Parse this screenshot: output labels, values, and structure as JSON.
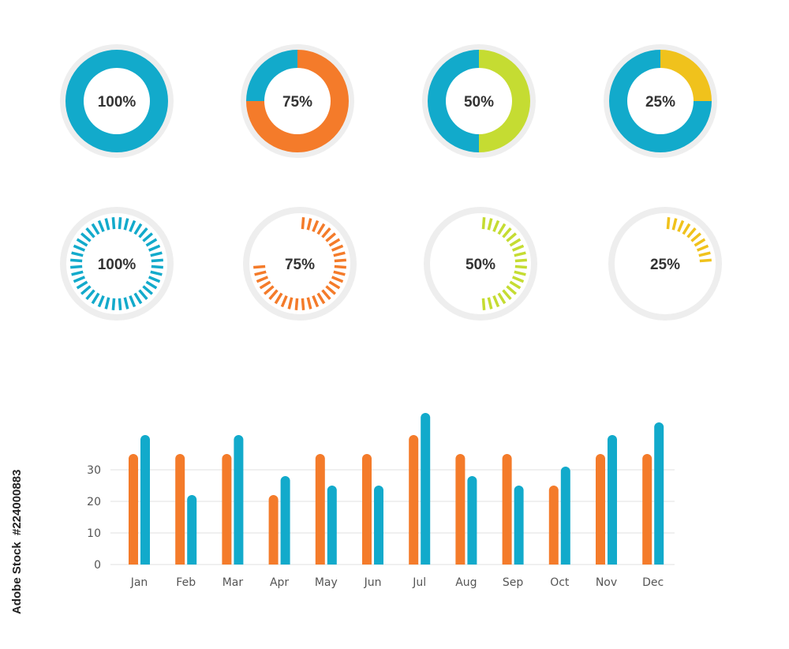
{
  "colors": {
    "blue": "#12aacb",
    "orange": "#f47b2a",
    "green": "#c5dc32",
    "yellow": "#f0c21c",
    "ring": "#eeeeee",
    "grid": "#e2e2e2",
    "text": "#333333"
  },
  "donuts": [
    {
      "label": "100%",
      "value": 100,
      "fill_color": "blue",
      "rest_color": "blue"
    },
    {
      "label": "75%",
      "value": 75,
      "fill_color": "orange",
      "rest_color": "blue"
    },
    {
      "label": "50%",
      "value": 50,
      "fill_color": "green",
      "rest_color": "blue"
    },
    {
      "label": "25%",
      "value": 25,
      "fill_color": "yellow",
      "rest_color": "blue"
    }
  ],
  "gauges": [
    {
      "label": "100%",
      "value": 100,
      "color": "blue"
    },
    {
      "label": "75%",
      "value": 75,
      "color": "orange"
    },
    {
      "label": "50%",
      "value": 50,
      "color": "green"
    },
    {
      "label": "25%",
      "value": 25,
      "color": "yellow"
    }
  ],
  "chart_data": {
    "type": "bar",
    "categories": [
      "Jan",
      "Feb",
      "Mar",
      "Apr",
      "May",
      "Jun",
      "Jul",
      "Aug",
      "Sep",
      "Oct",
      "Nov",
      "Dec"
    ],
    "series": [
      {
        "color": "orange",
        "values": [
          35,
          35,
          35,
          22,
          35,
          35,
          41,
          35,
          35,
          25,
          35,
          35
        ]
      },
      {
        "color": "blue",
        "values": [
          41,
          22,
          41,
          28,
          25,
          25,
          48,
          28,
          25,
          31,
          41,
          45
        ]
      }
    ],
    "yticks": [
      0,
      10,
      20,
      30
    ],
    "ylim": [
      0,
      50
    ],
    "grid": true,
    "legend": "none"
  },
  "stock": {
    "brand": "Adobe Stock",
    "id": "#224000883"
  }
}
